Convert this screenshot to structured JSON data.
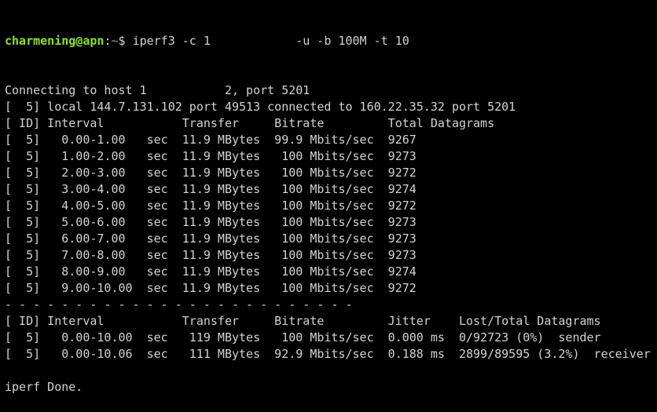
{
  "prompt": {
    "user_host": "charmening@apn",
    "sep": ":",
    "path": "~",
    "symbol": "$ ",
    "command": "iperf3 -c 1            -u -b 100M -t 10"
  },
  "colors": {
    "background": "#000000",
    "text": "#d3d3d3",
    "user": "#8ae234",
    "path": "#729fcf"
  },
  "lines": [
    "Connecting to host 1           2, port 5201",
    "[  5] local 144.7.131.102 port 49513 connected to 160.22.35.32 port 5201",
    "[ ID] Interval           Transfer     Bitrate         Total Datagrams",
    "[  5]   0.00-1.00   sec  11.9 MBytes  99.9 Mbits/sec  9267",
    "[  5]   1.00-2.00   sec  11.9 MBytes   100 Mbits/sec  9273",
    "[  5]   2.00-3.00   sec  11.9 MBytes   100 Mbits/sec  9272",
    "[  5]   3.00-4.00   sec  11.9 MBytes   100 Mbits/sec  9274",
    "[  5]   4.00-5.00   sec  11.9 MBytes   100 Mbits/sec  9272",
    "[  5]   5.00-6.00   sec  11.9 MBytes   100 Mbits/sec  9273",
    "[  5]   6.00-7.00   sec  11.9 MBytes   100 Mbits/sec  9273",
    "[  5]   7.00-8.00   sec  11.9 MBytes   100 Mbits/sec  9273",
    "[  5]   8.00-9.00   sec  11.9 MBytes   100 Mbits/sec  9274",
    "[  5]   9.00-10.00  sec  11.9 MBytes   100 Mbits/sec  9272",
    "- - - - - - - - - - - - - - - - - - - - - - - - -",
    "[ ID] Interval           Transfer     Bitrate         Jitter    Lost/Total Datagrams",
    "[  5]   0.00-10.00  sec   119 MBytes   100 Mbits/sec  0.000 ms  0/92723 (0%)  sender",
    "[  5]   0.00-10.06  sec   111 MBytes  92.9 Mbits/sec  0.188 ms  2899/89595 (3.2%)  receiver",
    "",
    "iperf Done."
  ]
}
